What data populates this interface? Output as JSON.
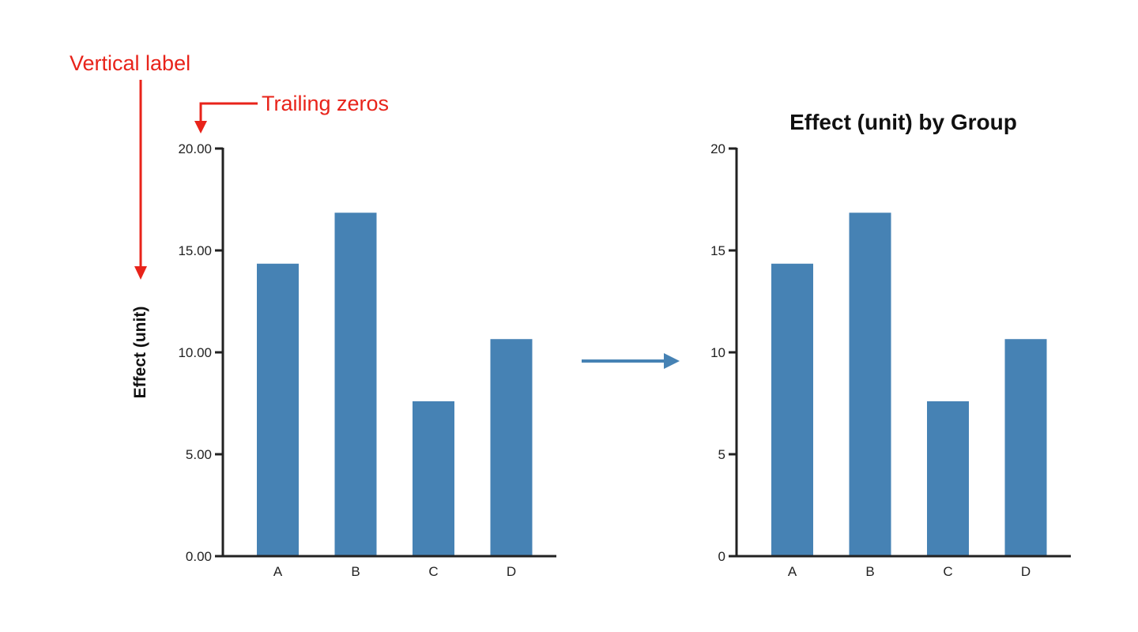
{
  "annotations": {
    "vertical_label": "Vertical label",
    "trailing_zeros": "Trailing zeros",
    "annotation_color": "#e8231a",
    "arrow_color": "#4682b4"
  },
  "chart_data": [
    {
      "type": "bar",
      "title": "",
      "xlabel": "",
      "ylabel": "Effect (unit)",
      "categories": [
        "A",
        "B",
        "C",
        "D"
      ],
      "values": [
        14.35,
        16.85,
        7.6,
        10.65
      ],
      "ylim": [
        0,
        20
      ],
      "yticks": [
        0,
        5,
        10,
        15,
        20
      ],
      "ytick_labels": [
        "0.00",
        "5.00",
        "10.00",
        "15.00",
        "20.00"
      ],
      "grid": false,
      "color": "#4682b4"
    },
    {
      "type": "bar",
      "title": "Effect (unit) by Group",
      "xlabel": "",
      "ylabel": "",
      "categories": [
        "A",
        "B",
        "C",
        "D"
      ],
      "values": [
        14.35,
        16.85,
        7.6,
        10.65
      ],
      "ylim": [
        0,
        20
      ],
      "yticks": [
        0,
        5,
        10,
        15,
        20
      ],
      "ytick_labels": [
        "0",
        "5",
        "10",
        "15",
        "20"
      ],
      "grid": false,
      "color": "#4682b4"
    }
  ]
}
